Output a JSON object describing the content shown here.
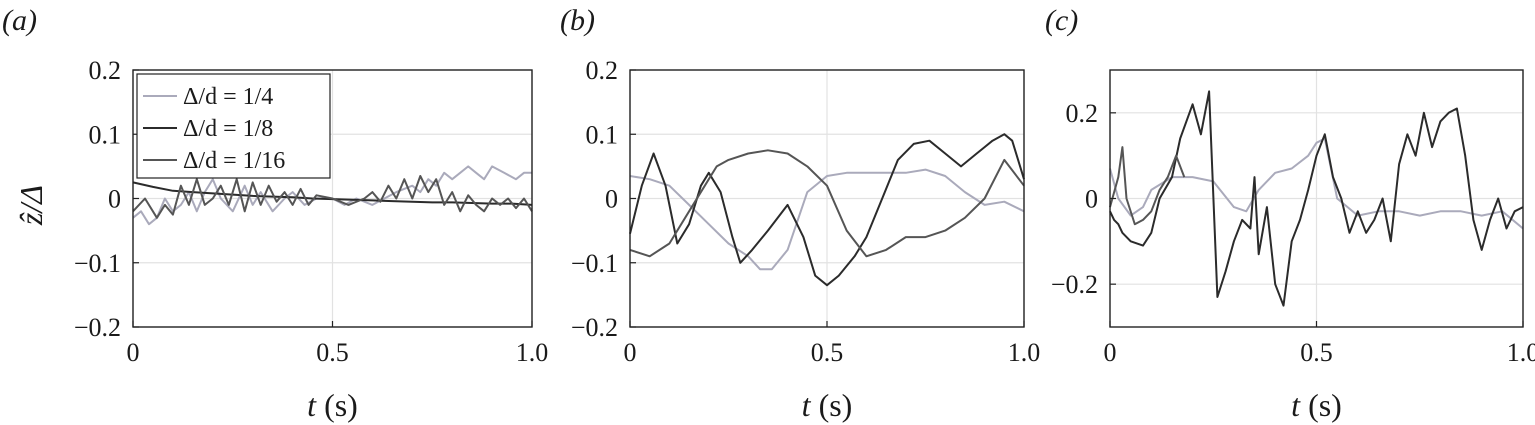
{
  "ylabel": "ẑ/Δ",
  "chart_data": [
    {
      "type": "line",
      "panel_label": "(a)",
      "xlabel": "t (s)",
      "xlim": [
        0,
        1
      ],
      "ylim": [
        -0.2,
        0.2
      ],
      "xticks": [
        "0",
        "0.5",
        "1.0"
      ],
      "xtick_values": [
        0,
        0.5,
        1
      ],
      "yticks": [
        "0.2",
        "0.1",
        "0",
        "−0.1",
        "−0.2"
      ],
      "ytick_values": [
        0.2,
        0.1,
        0,
        -0.1,
        -0.2
      ],
      "grid": true,
      "legend": {
        "placement": "top-left",
        "entries": [
          {
            "label": "Δ/d = 1/4",
            "color": "#aaaabb"
          },
          {
            "label": "Δ/d = 1/8",
            "color": "#2b2b2b"
          },
          {
            "label": "Δ/d = 1/16",
            "color": "#555555"
          }
        ]
      },
      "series": [
        {
          "color": "#aaaabb",
          "x": [
            0,
            0.02,
            0.04,
            0.06,
            0.08,
            0.1,
            0.12,
            0.14,
            0.16,
            0.18,
            0.2,
            0.22,
            0.25,
            0.28,
            0.3,
            0.32,
            0.35,
            0.38,
            0.4,
            0.43,
            0.46,
            0.5,
            0.53,
            0.56,
            0.6,
            0.63,
            0.66,
            0.7,
            0.72,
            0.74,
            0.76,
            0.78,
            0.8,
            0.82,
            0.84,
            0.86,
            0.88,
            0.9,
            0.93,
            0.96,
            0.98,
            1.0
          ],
          "y": [
            -0.03,
            -0.02,
            -0.04,
            -0.03,
            0.0,
            -0.02,
            -0.01,
            0.01,
            -0.02,
            0.01,
            0.03,
            0.0,
            -0.02,
            0.02,
            -0.01,
            0.01,
            -0.02,
            0.0,
            0.01,
            -0.01,
            0.0,
            0.0,
            -0.01,
            0.0,
            -0.01,
            0.0,
            0.01,
            0.02,
            0.01,
            0.03,
            0.02,
            0.04,
            0.03,
            0.04,
            0.05,
            0.04,
            0.03,
            0.05,
            0.04,
            0.03,
            0.04,
            0.04
          ]
        },
        {
          "color": "#2b2b2b",
          "x": [
            0,
            0.05,
            0.1,
            0.15,
            0.2,
            0.25,
            0.3,
            0.35,
            0.4,
            0.45,
            0.5,
            0.55,
            0.6,
            0.65,
            0.7,
            0.75,
            0.8,
            0.85,
            0.9,
            0.95,
            1.0
          ],
          "y": [
            0.025,
            0.018,
            0.012,
            0.01,
            0.008,
            0.006,
            0.004,
            0.003,
            0.002,
            0.0,
            -0.001,
            -0.002,
            -0.003,
            -0.004,
            -0.005,
            -0.006,
            -0.006,
            -0.007,
            -0.008,
            -0.008,
            -0.01
          ]
        },
        {
          "color": "#555555",
          "x": [
            0,
            0.03,
            0.06,
            0.08,
            0.1,
            0.12,
            0.14,
            0.16,
            0.18,
            0.2,
            0.22,
            0.24,
            0.26,
            0.28,
            0.3,
            0.32,
            0.34,
            0.36,
            0.38,
            0.4,
            0.42,
            0.44,
            0.46,
            0.5,
            0.54,
            0.58,
            0.6,
            0.62,
            0.64,
            0.66,
            0.68,
            0.7,
            0.72,
            0.74,
            0.76,
            0.78,
            0.8,
            0.82,
            0.84,
            0.86,
            0.88,
            0.9,
            0.92,
            0.94,
            0.96,
            0.98,
            1.0
          ],
          "y": [
            -0.02,
            0.0,
            -0.03,
            -0.01,
            -0.025,
            0.02,
            -0.01,
            0.03,
            -0.01,
            0.0,
            0.02,
            -0.01,
            0.03,
            -0.02,
            0.025,
            -0.01,
            0.02,
            -0.005,
            0.01,
            -0.01,
            0.015,
            -0.01,
            0.005,
            0.0,
            -0.01,
            0.0,
            0.01,
            -0.005,
            0.02,
            0.0,
            0.03,
            0.0,
            0.035,
            0.01,
            0.03,
            -0.01,
            0.01,
            -0.02,
            0.005,
            -0.01,
            -0.02,
            0.0,
            -0.01,
            0.0,
            -0.015,
            0.0,
            -0.02
          ]
        }
      ]
    },
    {
      "type": "line",
      "panel_label": "(b)",
      "xlabel": "t (s)",
      "xlim": [
        0,
        1
      ],
      "ylim": [
        -0.2,
        0.2
      ],
      "xticks": [
        "0",
        "0.5",
        "1.0"
      ],
      "xtick_values": [
        0,
        0.5,
        1
      ],
      "yticks": [
        "0.2",
        "0.1",
        "0",
        "−0.1",
        "−0.2"
      ],
      "ytick_values": [
        0.2,
        0.1,
        0,
        -0.1,
        -0.2
      ],
      "grid": true,
      "series": [
        {
          "color": "#aaaabb",
          "x": [
            0,
            0.05,
            0.1,
            0.15,
            0.2,
            0.25,
            0.3,
            0.33,
            0.36,
            0.4,
            0.45,
            0.5,
            0.55,
            0.6,
            0.65,
            0.7,
            0.75,
            0.8,
            0.85,
            0.9,
            0.95,
            1.0
          ],
          "y": [
            0.035,
            0.03,
            0.02,
            -0.01,
            -0.04,
            -0.07,
            -0.09,
            -0.11,
            -0.11,
            -0.08,
            0.01,
            0.035,
            0.04,
            0.04,
            0.04,
            0.04,
            0.045,
            0.035,
            0.01,
            -0.01,
            -0.005,
            -0.02
          ]
        },
        {
          "color": "#2b2b2b",
          "x": [
            0,
            0.03,
            0.06,
            0.09,
            0.12,
            0.15,
            0.18,
            0.2,
            0.23,
            0.26,
            0.28,
            0.31,
            0.35,
            0.4,
            0.44,
            0.47,
            0.5,
            0.53,
            0.57,
            0.6,
            0.64,
            0.68,
            0.72,
            0.76,
            0.8,
            0.84,
            0.88,
            0.9,
            0.92,
            0.95,
            0.97,
            0.99,
            1.0
          ],
          "y": [
            -0.055,
            0.02,
            0.07,
            0.02,
            -0.07,
            -0.04,
            0.02,
            0.04,
            0.01,
            -0.06,
            -0.1,
            -0.08,
            -0.05,
            -0.01,
            -0.06,
            -0.12,
            -0.135,
            -0.12,
            -0.09,
            -0.06,
            0.0,
            0.06,
            0.085,
            0.09,
            0.07,
            0.05,
            0.07,
            0.08,
            0.09,
            0.1,
            0.09,
            0.05,
            0.03
          ]
        },
        {
          "color": "#555555",
          "x": [
            0,
            0.05,
            0.1,
            0.15,
            0.2,
            0.22,
            0.25,
            0.3,
            0.35,
            0.4,
            0.45,
            0.5,
            0.55,
            0.6,
            0.65,
            0.7,
            0.75,
            0.8,
            0.85,
            0.9,
            0.95,
            1.0
          ],
          "y": [
            -0.08,
            -0.09,
            -0.07,
            -0.02,
            0.03,
            0.05,
            0.06,
            0.07,
            0.075,
            0.07,
            0.05,
            0.02,
            -0.05,
            -0.09,
            -0.08,
            -0.06,
            -0.06,
            -0.05,
            -0.03,
            0.0,
            0.06,
            0.02
          ]
        }
      ]
    },
    {
      "type": "line",
      "panel_label": "(c)",
      "xlabel": "t (s)",
      "xlim": [
        0,
        1
      ],
      "ylim": [
        -0.3,
        0.3
      ],
      "xticks": [
        "0",
        "0.5",
        "1.0"
      ],
      "xtick_values": [
        0,
        0.5,
        1
      ],
      "yticks": [
        "0.2",
        "0",
        "−0.2"
      ],
      "ytick_values": [
        0.2,
        0,
        -0.2
      ],
      "grid": true,
      "series": [
        {
          "color": "#aaaabb",
          "x": [
            0,
            0.02,
            0.05,
            0.08,
            0.1,
            0.15,
            0.2,
            0.25,
            0.3,
            0.33,
            0.36,
            0.4,
            0.44,
            0.48,
            0.5,
            0.52,
            0.55,
            0.6,
            0.65,
            0.7,
            0.75,
            0.8,
            0.85,
            0.9,
            0.95,
            1.0
          ],
          "y": [
            0.07,
            0.0,
            -0.04,
            -0.02,
            0.02,
            0.05,
            0.05,
            0.04,
            -0.02,
            -0.03,
            0.02,
            0.06,
            0.07,
            0.1,
            0.13,
            0.14,
            0.0,
            -0.04,
            -0.03,
            -0.03,
            -0.04,
            -0.03,
            -0.03,
            -0.04,
            -0.03,
            -0.07
          ]
        },
        {
          "color": "#2b2b2b",
          "x": [
            0,
            0.01,
            0.02,
            0.03,
            0.05,
            0.08,
            0.1,
            0.12,
            0.15,
            0.17,
            0.2,
            0.22,
            0.24,
            0.26,
            0.28,
            0.3,
            0.32,
            0.34,
            0.35,
            0.36,
            0.38,
            0.4,
            0.42,
            0.44,
            0.46,
            0.48,
            0.5,
            0.52,
            0.54,
            0.56,
            0.58,
            0.6,
            0.62,
            0.64,
            0.66,
            0.68,
            0.7,
            0.72,
            0.74,
            0.76,
            0.78,
            0.8,
            0.82,
            0.84,
            0.86,
            0.88,
            0.9,
            0.92,
            0.94,
            0.96,
            0.98,
            1.0
          ],
          "y": [
            -0.03,
            -0.05,
            -0.06,
            -0.08,
            -0.1,
            -0.11,
            -0.08,
            0.0,
            0.05,
            0.14,
            0.22,
            0.15,
            0.25,
            -0.23,
            -0.17,
            -0.1,
            -0.05,
            -0.07,
            0.05,
            -0.13,
            -0.02,
            -0.2,
            -0.25,
            -0.1,
            -0.05,
            0.02,
            0.1,
            0.15,
            0.05,
            0.0,
            -0.08,
            -0.03,
            -0.08,
            -0.05,
            0.0,
            -0.1,
            0.08,
            0.15,
            0.1,
            0.2,
            0.12,
            0.18,
            0.2,
            0.21,
            0.1,
            -0.05,
            -0.12,
            -0.05,
            0.0,
            -0.07,
            -0.03,
            -0.02
          ]
        },
        {
          "color": "#555555",
          "x": [
            0,
            0.02,
            0.03,
            0.04,
            0.06,
            0.08,
            0.1,
            0.12,
            0.14,
            0.16,
            0.18
          ],
          "y": [
            -0.02,
            0.05,
            0.12,
            0.0,
            -0.06,
            -0.05,
            -0.03,
            0.02,
            0.05,
            0.1,
            0.05
          ]
        }
      ]
    }
  ]
}
